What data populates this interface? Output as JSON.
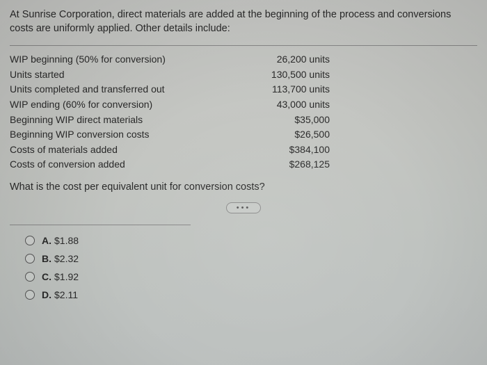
{
  "prompt": "At Sunrise Corporation, direct materials are added at the beginning of the process and conversions costs are uniformly applied. Other details include:",
  "rows": [
    {
      "label": "WIP beginning (50% for conversion)",
      "value": "26,200 units"
    },
    {
      "label": "Units started",
      "value": "130,500 units"
    },
    {
      "label": "Units completed and transferred out",
      "value": "113,700 units"
    },
    {
      "label": "WIP ending (60% for conversion)",
      "value": "43,000 units"
    },
    {
      "label": "Beginning WIP direct materials",
      "value": "$35,000"
    },
    {
      "label": "Beginning WIP conversion costs",
      "value": "$26,500"
    },
    {
      "label": "Costs of materials added",
      "value": "$384,100"
    },
    {
      "label": "Costs of conversion added",
      "value": "$268,125"
    }
  ],
  "question": "What is the cost per equivalent unit for conversion costs?",
  "dots": "•••",
  "options": [
    {
      "letter": "A.",
      "text": "$1.88"
    },
    {
      "letter": "B.",
      "text": "$2.32"
    },
    {
      "letter": "C.",
      "text": "$1.92"
    },
    {
      "letter": "D.",
      "text": "$2.11"
    }
  ],
  "colors": {
    "text": "#2a2a2a",
    "divider": "#888888",
    "radio_border": "#555555",
    "bg_top": "#c8c9c6",
    "bg_bottom": "#bcc0bf"
  },
  "font_sizes": {
    "prompt": 14.5,
    "row": 14,
    "question": 14.5,
    "option": 14
  }
}
